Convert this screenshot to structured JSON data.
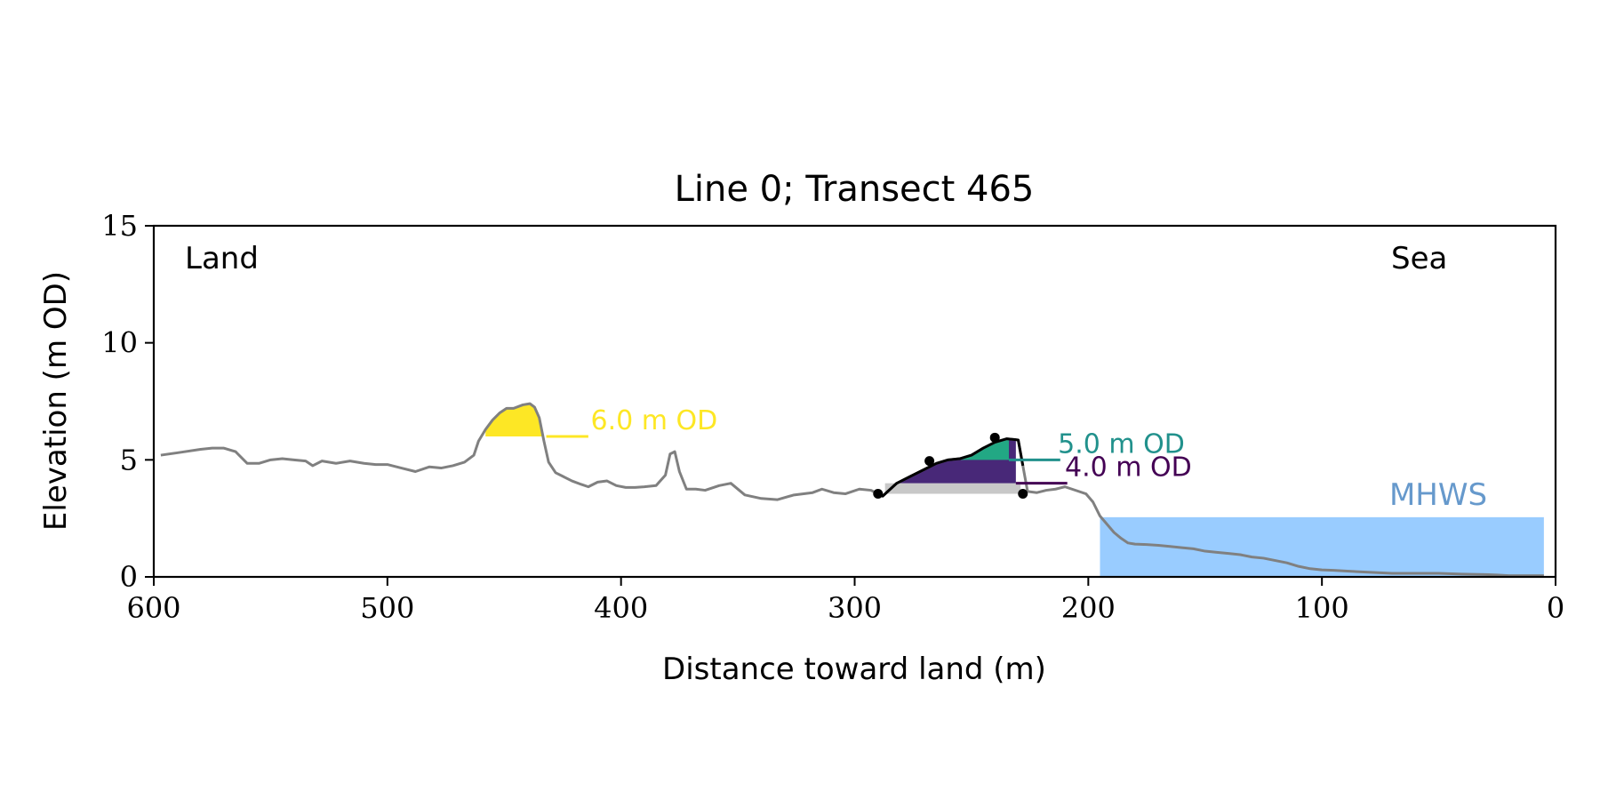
{
  "chart_data": {
    "type": "line",
    "title": "Line 0; Transect 465",
    "xlabel": "Distance toward land (m)",
    "ylabel": "Elevation (m OD)",
    "xlim": [
      600,
      0
    ],
    "ylim": [
      0,
      15
    ],
    "x_reversed": true,
    "xticks": [
      600,
      500,
      400,
      300,
      200,
      100,
      0
    ],
    "yticks": [
      0,
      5,
      10,
      15
    ],
    "xtick_labels": [
      "600",
      "500",
      "400",
      "300",
      "200",
      "100",
      "0"
    ],
    "ytick_labels": [
      "0",
      "5",
      "10",
      "15"
    ],
    "corner_labels": {
      "left": "Land",
      "right": "Sea"
    },
    "grid": false,
    "colors": {
      "profile": "#808080",
      "dune": "#000000",
      "contour_6": "#fde725",
      "contour_5": "#21918c",
      "contour_5_fill": "#22a884",
      "contour_4": "#440154",
      "contour_4_fill": "#482878",
      "base_fill": "#c8c8c8",
      "mhws": "#99ccff",
      "mhws_text": "#6699cc"
    },
    "series": [
      {
        "role": "profile",
        "x": [
          597,
          590,
          580,
          575,
          570,
          565,
          560,
          555,
          550,
          545,
          540,
          535,
          532,
          528,
          522,
          516,
          510,
          505,
          500,
          494,
          488,
          482,
          477,
          472,
          467,
          463,
          461,
          458,
          455,
          452,
          449,
          446,
          442,
          439,
          437,
          435,
          433,
          431,
          428,
          425,
          421,
          417,
          414,
          410,
          406,
          402,
          398,
          394,
          390,
          385,
          381,
          379,
          377,
          375,
          372,
          368,
          364,
          358,
          353,
          347,
          340,
          333,
          326,
          318,
          314,
          309,
          304,
          298,
          293,
          288,
          282,
          276,
          270,
          265,
          260,
          255,
          250,
          245,
          240,
          235,
          230,
          226,
          222,
          218,
          214,
          212,
          210,
          207,
          204,
          201,
          198,
          195,
          192,
          189,
          186,
          183,
          180,
          175,
          170,
          165,
          160,
          155,
          150,
          145,
          140,
          135,
          130,
          125,
          120,
          115,
          110,
          105,
          100,
          95,
          90,
          80,
          70,
          60,
          50,
          40,
          30,
          25,
          20,
          15,
          10,
          5
        ],
        "y": [
          5.2,
          5.3,
          5.45,
          5.5,
          5.5,
          5.35,
          4.85,
          4.85,
          5.0,
          5.05,
          5.0,
          4.95,
          4.75,
          4.95,
          4.85,
          4.95,
          4.85,
          4.8,
          4.8,
          4.65,
          4.5,
          4.7,
          4.65,
          4.75,
          4.9,
          5.2,
          5.8,
          6.3,
          6.7,
          7.0,
          7.2,
          7.2,
          7.35,
          7.4,
          7.25,
          6.8,
          5.8,
          4.9,
          4.45,
          4.3,
          4.1,
          3.95,
          3.85,
          4.05,
          4.1,
          3.9,
          3.82,
          3.82,
          3.85,
          3.9,
          4.35,
          5.25,
          5.35,
          4.5,
          3.75,
          3.75,
          3.7,
          3.9,
          4.0,
          3.5,
          3.35,
          3.3,
          3.5,
          3.6,
          3.75,
          3.6,
          3.55,
          3.75,
          3.7,
          3.45,
          4.0,
          4.3,
          4.6,
          4.85,
          5.0,
          5.05,
          5.2,
          5.5,
          5.75,
          5.9,
          5.85,
          3.65,
          3.6,
          3.7,
          3.75,
          3.8,
          3.85,
          3.75,
          3.65,
          3.55,
          3.2,
          2.6,
          2.25,
          1.9,
          1.65,
          1.45,
          1.4,
          1.38,
          1.35,
          1.3,
          1.25,
          1.2,
          1.1,
          1.05,
          1.0,
          0.95,
          0.85,
          0.8,
          0.7,
          0.6,
          0.45,
          0.35,
          0.3,
          0.28,
          0.25,
          0.2,
          0.15,
          0.15,
          0.15,
          0.12,
          0.1,
          0.08,
          0.05,
          0.05,
          0.05,
          0.05
        ]
      }
    ],
    "dune_markers": [
      {
        "x": 290,
        "y": 3.55
      },
      {
        "x": 268,
        "y": 4.95
      },
      {
        "x": 240,
        "y": 5.95
      },
      {
        "x": 228,
        "y": 3.55
      }
    ],
    "contours": [
      {
        "level": 6.0,
        "label": "6.0 m OD",
        "fill_from": 458,
        "fill_to": 432,
        "line_to": 414,
        "label_x": 413
      },
      {
        "level": 5.0,
        "label": "5.0 m OD",
        "fill_from": 258,
        "fill_to": 234,
        "line_to": 212,
        "label_x": 213
      },
      {
        "level": 4.0,
        "label": "4.0 m OD",
        "fill_from": 282,
        "fill_to": 231,
        "line_to": 209,
        "label_x": 210
      }
    ],
    "base_fill": {
      "x_from": 287,
      "x_to": 229,
      "y_from": 3.55,
      "y_to": 4.0
    },
    "mhws": {
      "label": "MHWS",
      "level": 2.55,
      "x_from": 195,
      "x_to": 5
    }
  }
}
